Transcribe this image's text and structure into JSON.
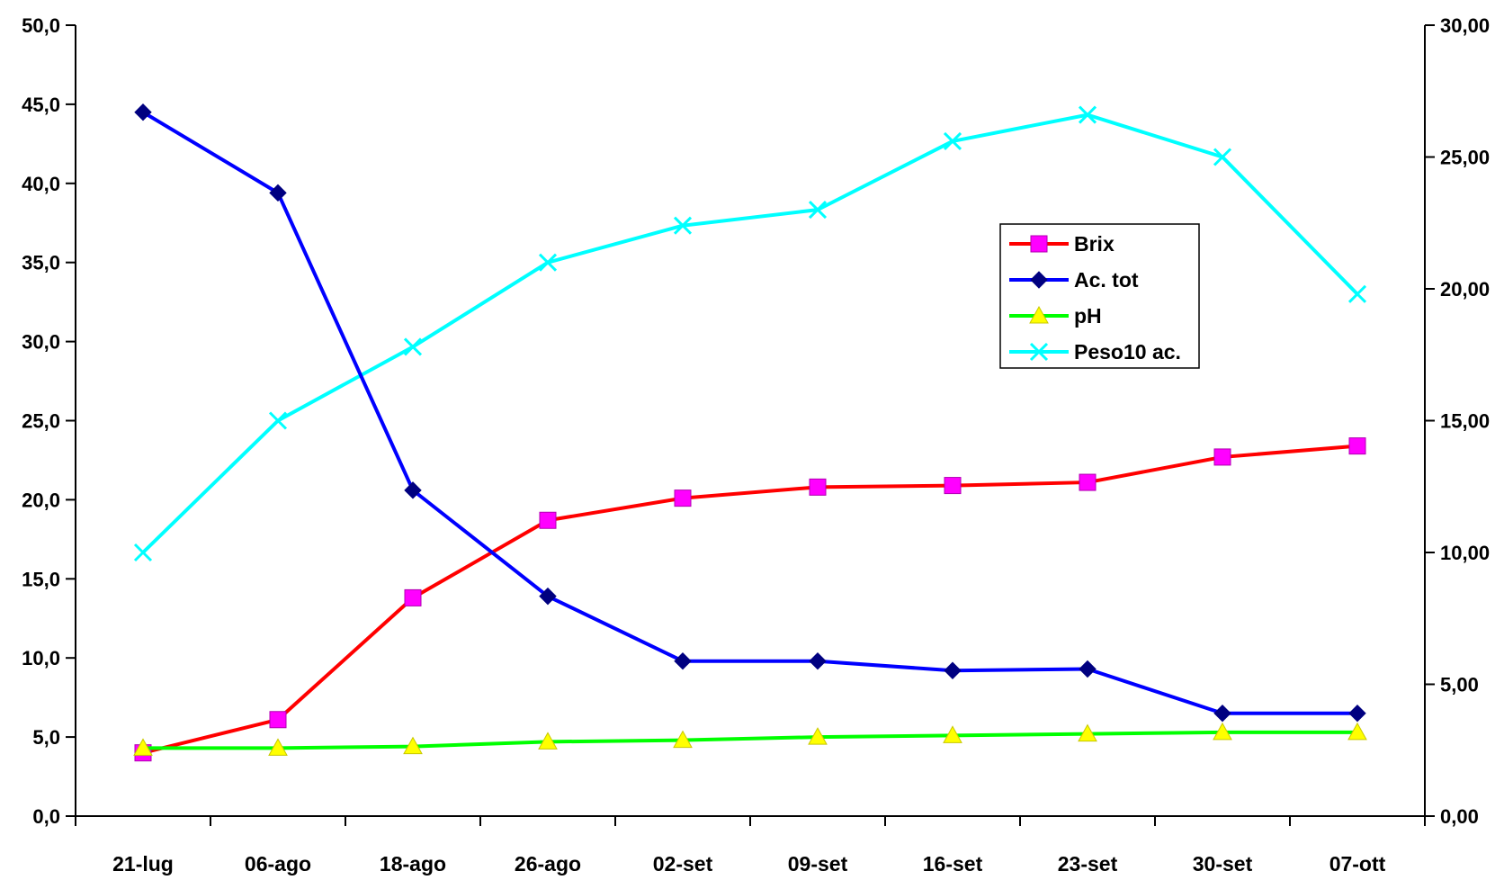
{
  "chart_data": {
    "type": "line",
    "title": "",
    "xlabel": "",
    "ylabel": "",
    "categories": [
      "21-lug",
      "06-ago",
      "18-ago",
      "26-ago",
      "02-set",
      "09-set",
      "16-set",
      "23-set",
      "30-set",
      "07-ott"
    ],
    "y_left": {
      "range": [
        0,
        50
      ],
      "ticks": [
        "0,0",
        "5,0",
        "10,0",
        "15,0",
        "20,0",
        "25,0",
        "30,0",
        "35,0",
        "40,0",
        "45,0",
        "50,0"
      ]
    },
    "y_right": {
      "range": [
        0,
        30
      ],
      "ticks": [
        "0,00",
        "5,00",
        "10,00",
        "15,00",
        "20,00",
        "25,00",
        "30,00"
      ]
    },
    "grid": false,
    "legend_position": "upper-right inside plot",
    "series": [
      {
        "name": "Brix",
        "axis": "left",
        "color": "#ff0000",
        "marker": "square",
        "marker_color": "#ff00ff",
        "values": [
          4.0,
          6.1,
          13.8,
          18.7,
          20.1,
          20.8,
          20.9,
          21.1,
          22.7,
          23.4
        ]
      },
      {
        "name": "Ac. tot",
        "axis": "left",
        "color": "#0000ff",
        "marker": "diamond",
        "marker_color": "#000080",
        "values": [
          44.5,
          39.4,
          20.6,
          13.9,
          9.8,
          9.8,
          9.2,
          9.3,
          6.5,
          6.5
        ]
      },
      {
        "name": "pH",
        "axis": "left",
        "color": "#00ff00",
        "marker": "triangle",
        "marker_color": "#ffff00",
        "values": [
          4.3,
          4.3,
          4.4,
          4.7,
          4.8,
          5.0,
          5.1,
          5.2,
          5.3,
          5.3
        ]
      },
      {
        "name": "Peso10 ac.",
        "axis": "right",
        "color": "#00ffff",
        "marker": "x",
        "marker_color": "#00ffff",
        "values": [
          10.0,
          15.0,
          17.8,
          21.0,
          22.4,
          23.0,
          25.6,
          26.6,
          25.0,
          19.8
        ]
      }
    ]
  }
}
